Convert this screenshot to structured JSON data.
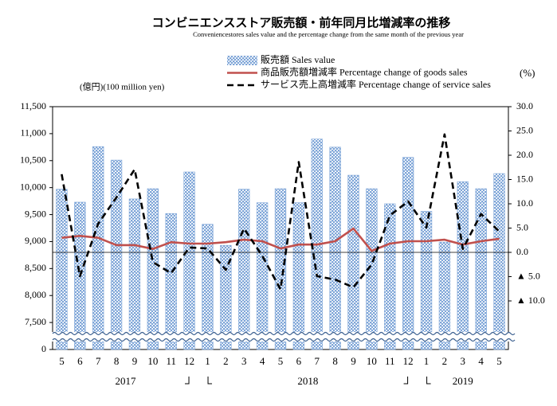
{
  "chart_data": {
    "type": "bar_line",
    "title": "コンビニエンスストア販売額・前年同月比増減率の推移",
    "subtitle": "Conveniencestores sales value and the percentage change from the same month of the previous year",
    "y_label": "(億円)(100 million yen)",
    "y2_label": "(%)",
    "categories": [
      "5",
      "6",
      "7",
      "8",
      "9",
      "10",
      "11",
      "12",
      "1",
      "2",
      "3",
      "4",
      "5",
      "6",
      "7",
      "8",
      "9",
      "10",
      "11",
      "12",
      "1",
      "2",
      "3",
      "4",
      "5"
    ],
    "year_groups": [
      {
        "label": "2017",
        "months": 8
      },
      {
        "label": "2018",
        "months": 12
      },
      {
        "label": "2019",
        "months": 5
      }
    ],
    "series": [
      {
        "name": "販売額 Sales value",
        "type": "bar",
        "color": "#7fa6d8",
        "values": [
          9970,
          9730,
          10760,
          10510,
          9790,
          9980,
          9520,
          10290,
          9320,
          8930,
          9970,
          9720,
          9980,
          9720,
          10900,
          10750,
          10230,
          9980,
          9700,
          10560,
          9560,
          8990,
          10110,
          9980,
          10260
        ]
      },
      {
        "name": "商品販売額増減率 Percentage change of goods sales",
        "type": "line",
        "axis": "y2",
        "color": "#c0504d",
        "values": [
          3.0,
          3.4,
          3.0,
          1.5,
          1.5,
          0.7,
          2.1,
          1.8,
          1.8,
          2.1,
          2.6,
          2.3,
          0.8,
          1.6,
          1.6,
          2.3,
          4.9,
          0.3,
          1.8,
          2.3,
          2.3,
          2.6,
          1.6,
          2.3,
          2.8
        ]
      },
      {
        "name": "サービス売上高増減率 Percentage change of service sales",
        "type": "line",
        "axis": "y2",
        "color": "#000000",
        "dashed": true,
        "values": [
          16.1,
          -4.9,
          5.9,
          11.3,
          17.1,
          -2.0,
          -4.3,
          1.0,
          0.8,
          -3.6,
          4.9,
          -0.7,
          -7.6,
          18.6,
          -4.9,
          -5.6,
          -7.2,
          -2.5,
          7.6,
          10.5,
          5.1,
          24.3,
          0.7,
          7.9,
          4.3
        ]
      }
    ],
    "ylim": [
      0,
      11500
    ],
    "axis_break": [
      0,
      7500
    ],
    "yticks": [
      0,
      {
        "value": 7500,
        "label": "7,500"
      },
      {
        "value": 8000,
        "label": "8,000"
      },
      {
        "value": 8500,
        "label": "8,500"
      },
      {
        "value": 9000,
        "label": "9,000"
      },
      {
        "value": 9500,
        "label": "9,500"
      },
      {
        "value": 10000,
        "label": "10,000"
      },
      {
        "value": 10500,
        "label": "10,500"
      },
      {
        "value": 11000,
        "label": "11,000"
      },
      {
        "value": 11500,
        "label": "11,500"
      }
    ],
    "y2lim": [
      -20,
      30
    ],
    "y2ticks": [
      {
        "value": -10,
        "label": "▲ 10.0"
      },
      {
        "value": -5,
        "label": "▲ 5.0"
      },
      {
        "value": 0,
        "label": "0.0"
      },
      {
        "value": 5,
        "label": "5.0"
      },
      {
        "value": 10,
        "label": "10.0"
      },
      {
        "value": 15,
        "label": "15.0"
      },
      {
        "value": 20,
        "label": "20.0"
      },
      {
        "value": 25,
        "label": "25.0"
      },
      {
        "value": 30,
        "label": "30.0"
      }
    ],
    "zero_line": true,
    "legend": "top"
  }
}
